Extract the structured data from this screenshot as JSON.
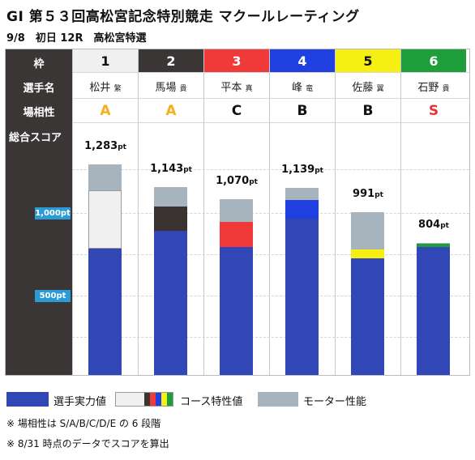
{
  "title": "GI 第５３回高松宮記念特別競走 マクールレーティング",
  "subtitle": "9/8　初日 12R　高松宮特選",
  "row_labels": {
    "frame": "枠",
    "racer": "選手名",
    "affinity": "場相性",
    "score": "総合スコア"
  },
  "y_ticks": {
    "t1000": "1,000pt",
    "t500": "500pt"
  },
  "unit": "pt",
  "racers": [
    {
      "frame": "1",
      "name": "松井",
      "suffix": "繁",
      "affinity": "A",
      "score": "1,283",
      "frame_bg": "#f0f0f0",
      "frame_fg": "#111111",
      "aff_color": "#f2b01e"
    },
    {
      "frame": "2",
      "name": "馬場",
      "suffix": "貴",
      "affinity": "A",
      "score": "1,143",
      "frame_bg": "#3a3635",
      "frame_fg": "#ffffff",
      "aff_color": "#f2b01e"
    },
    {
      "frame": "3",
      "name": "平本",
      "suffix": "真",
      "affinity": "C",
      "score": "1,070",
      "frame_bg": "#f03a3a",
      "frame_fg": "#ffffff",
      "aff_color": "#111111"
    },
    {
      "frame": "4",
      "name": "峰",
      "suffix": "竜",
      "affinity": "B",
      "score": "1,139",
      "frame_bg": "#1f3fe0",
      "frame_fg": "#ffffff",
      "aff_color": "#111111"
    },
    {
      "frame": "5",
      "name": "佐藤",
      "suffix": "翼",
      "affinity": "B",
      "score": "991",
      "frame_bg": "#f5ef12",
      "frame_fg": "#111111",
      "aff_color": "#111111"
    },
    {
      "frame": "6",
      "name": "石野",
      "suffix": "貴",
      "affinity": "S",
      "score": "804",
      "frame_bg": "#1e9e3a",
      "frame_fg": "#ffffff",
      "aff_color": "#e8322e"
    }
  ],
  "legend": {
    "player": "選手実力値",
    "course": "コース特性値",
    "motor": "モーター性能"
  },
  "notes": [
    "※ 場相性は S/A/B/C/D/E の 6 段階",
    "※ 8/31 時点のデータでスコアを算出"
  ],
  "chart_data": {
    "type": "bar",
    "stacked": true,
    "categories": [
      "1",
      "2",
      "3",
      "4",
      "5",
      "6"
    ],
    "series": [
      {
        "name": "選手実力値",
        "values": [
          770,
          880,
          780,
          950,
          710,
          780
        ],
        "color": "#3047b5"
      },
      {
        "name": "コース特性値",
        "values": [
          355,
          145,
          150,
          115,
          55,
          20
        ],
        "colors": [
          "#f0f0f0",
          "#3a3332",
          "#f03a3a",
          "#1f3fe0",
          "#f5ef12",
          "#1e9e3a"
        ]
      },
      {
        "name": "モーター性能",
        "values": [
          158,
          118,
          140,
          74,
          226,
          4
        ],
        "color": "#a7b4be"
      }
    ],
    "totals": [
      1283,
      1143,
      1070,
      1139,
      991,
      804
    ],
    "ylim": [
      0,
      1520
    ],
    "yticks": [
      500,
      1000
    ],
    "grid": true,
    "legend_position": "bottom"
  }
}
